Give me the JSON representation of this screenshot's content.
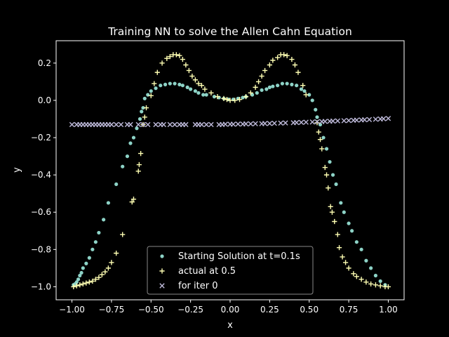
{
  "chart_data": {
    "type": "scatter",
    "title": "Training NN to solve the Allen Cahn Equation",
    "xlabel": "x",
    "ylabel": "y",
    "xlim": [
      -1.1,
      1.1
    ],
    "ylim": [
      -1.07,
      0.32
    ],
    "grid": false,
    "legend_position": "lower-center",
    "x_ticks": [
      -1.0,
      -0.75,
      -0.5,
      -0.25,
      0.0,
      0.25,
      0.5,
      0.75,
      1.0
    ],
    "x_tick_labels": [
      "−1.00",
      "−0.75",
      "−0.50",
      "−0.25",
      "0.00",
      "0.25",
      "0.50",
      "0.75",
      "1.00"
    ],
    "y_ticks": [
      -1.0,
      -0.8,
      -0.6,
      -0.4,
      -0.2,
      0.0,
      0.2
    ],
    "y_tick_labels": [
      "−1.0",
      "−0.8",
      "−0.6",
      "−0.4",
      "−0.2",
      "0.0",
      "0.2"
    ],
    "series": [
      {
        "name": "Starting Solution at t=0.1s",
        "marker": "dot",
        "color": "#8dd3c7",
        "points": [
          [
            -0.99,
            -0.99
          ],
          [
            -0.98,
            -0.985
          ],
          [
            -0.97,
            -0.975
          ],
          [
            -0.96,
            -0.96
          ],
          [
            -0.95,
            -0.94
          ],
          [
            -0.94,
            -0.925
          ],
          [
            -0.93,
            -0.9
          ],
          [
            -0.91,
            -0.875
          ],
          [
            -0.89,
            -0.845
          ],
          [
            -0.87,
            -0.8
          ],
          [
            -0.85,
            -0.76
          ],
          [
            -0.83,
            -0.71
          ],
          [
            -0.8,
            -0.64
          ],
          [
            -0.77,
            -0.55
          ],
          [
            -0.72,
            -0.45
          ],
          [
            -0.68,
            -0.355
          ],
          [
            -0.65,
            -0.3
          ],
          [
            -0.63,
            -0.23
          ],
          [
            -0.61,
            -0.2
          ],
          [
            -0.59,
            -0.15
          ],
          [
            -0.57,
            -0.1
          ],
          [
            -0.56,
            -0.06
          ],
          [
            -0.55,
            -0.04
          ],
          [
            -0.54,
            0.01
          ],
          [
            -0.52,
            0.03
          ],
          [
            -0.5,
            0.05
          ],
          [
            -0.47,
            0.065
          ],
          [
            -0.44,
            0.08
          ],
          [
            -0.41,
            0.085
          ],
          [
            -0.38,
            0.09
          ],
          [
            -0.35,
            0.09
          ],
          [
            -0.32,
            0.085
          ],
          [
            -0.3,
            0.08
          ],
          [
            -0.27,
            0.07
          ],
          [
            -0.25,
            0.06
          ],
          [
            -0.22,
            0.05
          ],
          [
            -0.2,
            0.04
          ],
          [
            -0.17,
            0.03
          ],
          [
            -0.15,
            0.03
          ],
          [
            -0.1,
            0.02
          ],
          [
            -0.07,
            0.015
          ],
          [
            -0.04,
            0.01
          ],
          [
            -0.01,
            0.005
          ],
          [
            0.02,
            0.005
          ],
          [
            0.05,
            0.01
          ],
          [
            0.08,
            0.015
          ],
          [
            0.1,
            0.02
          ],
          [
            0.14,
            0.03
          ],
          [
            0.17,
            0.04
          ],
          [
            0.2,
            0.055
          ],
          [
            0.23,
            0.06
          ],
          [
            0.25,
            0.07
          ],
          [
            0.27,
            0.075
          ],
          [
            0.3,
            0.08
          ],
          [
            0.33,
            0.09
          ],
          [
            0.36,
            0.09
          ],
          [
            0.39,
            0.085
          ],
          [
            0.42,
            0.08
          ],
          [
            0.45,
            0.06
          ],
          [
            0.47,
            0.05
          ],
          [
            0.5,
            0.03
          ],
          [
            0.52,
            0.0
          ],
          [
            0.54,
            -0.05
          ],
          [
            0.55,
            -0.09
          ],
          [
            0.57,
            -0.13
          ],
          [
            0.59,
            -0.2
          ],
          [
            0.61,
            -0.26
          ],
          [
            0.63,
            -0.33
          ],
          [
            0.65,
            -0.4
          ],
          [
            0.67,
            -0.45
          ],
          [
            0.7,
            -0.55
          ],
          [
            0.72,
            -0.6
          ],
          [
            0.75,
            -0.66
          ],
          [
            0.77,
            -0.7
          ],
          [
            0.8,
            -0.76
          ],
          [
            0.83,
            -0.8
          ],
          [
            0.86,
            -0.86
          ],
          [
            0.89,
            -0.9
          ],
          [
            0.92,
            -0.94
          ],
          [
            0.95,
            -0.97
          ],
          [
            0.98,
            -0.99
          ]
        ]
      },
      {
        "name": "actual at 0.5",
        "marker": "plus",
        "color": "#ffffb3",
        "points": [
          [
            -0.99,
            -1.0
          ],
          [
            -0.97,
            -0.995
          ],
          [
            -0.95,
            -0.99
          ],
          [
            -0.93,
            -0.985
          ],
          [
            -0.91,
            -0.98
          ],
          [
            -0.89,
            -0.975
          ],
          [
            -0.87,
            -0.97
          ],
          [
            -0.85,
            -0.96
          ],
          [
            -0.83,
            -0.95
          ],
          [
            -0.81,
            -0.935
          ],
          [
            -0.79,
            -0.92
          ],
          [
            -0.77,
            -0.9
          ],
          [
            -0.75,
            -0.87
          ],
          [
            -0.72,
            -0.82
          ],
          [
            -0.68,
            -0.72
          ],
          [
            -0.62,
            -0.545
          ],
          [
            -0.61,
            -0.53
          ],
          [
            -0.58,
            -0.38
          ],
          [
            -0.575,
            -0.345
          ],
          [
            -0.565,
            -0.285
          ],
          [
            -0.55,
            -0.13
          ],
          [
            -0.54,
            -0.09
          ],
          [
            -0.53,
            -0.04
          ],
          [
            -0.5,
            0.025
          ],
          [
            -0.48,
            0.09
          ],
          [
            -0.46,
            0.15
          ],
          [
            -0.43,
            0.2
          ],
          [
            -0.4,
            0.225
          ],
          [
            -0.38,
            0.235
          ],
          [
            -0.36,
            0.245
          ],
          [
            -0.34,
            0.245
          ],
          [
            -0.32,
            0.24
          ],
          [
            -0.3,
            0.22
          ],
          [
            -0.28,
            0.19
          ],
          [
            -0.26,
            0.16
          ],
          [
            -0.24,
            0.13
          ],
          [
            -0.22,
            0.11
          ],
          [
            -0.2,
            0.09
          ],
          [
            -0.18,
            0.08
          ],
          [
            -0.16,
            0.06
          ],
          [
            -0.12,
            0.04
          ],
          [
            -0.08,
            0.02
          ],
          [
            -0.04,
            0.01
          ],
          [
            -0.02,
            0.005
          ],
          [
            0.0,
            0.0
          ],
          [
            0.03,
            0.0
          ],
          [
            0.06,
            0.005
          ],
          [
            0.1,
            0.02
          ],
          [
            0.13,
            0.04
          ],
          [
            0.16,
            0.07
          ],
          [
            0.18,
            0.1
          ],
          [
            0.2,
            0.13
          ],
          [
            0.22,
            0.16
          ],
          [
            0.25,
            0.19
          ],
          [
            0.27,
            0.215
          ],
          [
            0.3,
            0.23
          ],
          [
            0.32,
            0.245
          ],
          [
            0.34,
            0.245
          ],
          [
            0.36,
            0.24
          ],
          [
            0.39,
            0.22
          ],
          [
            0.41,
            0.19
          ],
          [
            0.43,
            0.15
          ],
          [
            0.46,
            0.08
          ],
          [
            0.48,
            0.03
          ],
          [
            0.55,
            -0.12
          ],
          [
            0.56,
            -0.17
          ],
          [
            0.57,
            -0.21
          ],
          [
            0.58,
            -0.26
          ],
          [
            0.6,
            -0.36
          ],
          [
            0.61,
            -0.4
          ],
          [
            0.62,
            -0.47
          ],
          [
            0.635,
            -0.57
          ],
          [
            0.645,
            -0.6
          ],
          [
            0.66,
            -0.65
          ],
          [
            0.68,
            -0.72
          ],
          [
            0.69,
            -0.79
          ],
          [
            0.71,
            -0.84
          ],
          [
            0.73,
            -0.87
          ],
          [
            0.75,
            -0.9
          ],
          [
            0.78,
            -0.93
          ],
          [
            0.8,
            -0.945
          ],
          [
            0.83,
            -0.96
          ],
          [
            0.86,
            -0.975
          ],
          [
            0.89,
            -0.985
          ],
          [
            0.92,
            -0.99
          ],
          [
            0.95,
            -0.995
          ],
          [
            0.98,
            -1.0
          ],
          [
            1.0,
            -1.0
          ]
        ]
      },
      {
        "name": "for iter 0",
        "marker": "x",
        "color": "#bebada",
        "points": [
          [
            -1.0,
            -0.13
          ],
          [
            -0.97,
            -0.13
          ],
          [
            -0.95,
            -0.13
          ],
          [
            -0.93,
            -0.13
          ],
          [
            -0.91,
            -0.13
          ],
          [
            -0.89,
            -0.13
          ],
          [
            -0.87,
            -0.13
          ],
          [
            -0.85,
            -0.13
          ],
          [
            -0.83,
            -0.13
          ],
          [
            -0.81,
            -0.13
          ],
          [
            -0.79,
            -0.13
          ],
          [
            -0.77,
            -0.13
          ],
          [
            -0.75,
            -0.13
          ],
          [
            -0.72,
            -0.13
          ],
          [
            -0.69,
            -0.13
          ],
          [
            -0.65,
            -0.13
          ],
          [
            -0.63,
            -0.13
          ],
          [
            -0.58,
            -0.13
          ],
          [
            -0.55,
            -0.13
          ],
          [
            -0.52,
            -0.13
          ],
          [
            -0.47,
            -0.13
          ],
          [
            -0.44,
            -0.13
          ],
          [
            -0.42,
            -0.13
          ],
          [
            -0.38,
            -0.13
          ],
          [
            -0.35,
            -0.13
          ],
          [
            -0.32,
            -0.13
          ],
          [
            -0.3,
            -0.13
          ],
          [
            -0.28,
            -0.13
          ],
          [
            -0.22,
            -0.13
          ],
          [
            -0.2,
            -0.13
          ],
          [
            -0.18,
            -0.13
          ],
          [
            -0.15,
            -0.13
          ],
          [
            -0.12,
            -0.13
          ],
          [
            -0.07,
            -0.13
          ],
          [
            -0.05,
            -0.13
          ],
          [
            -0.03,
            -0.128
          ],
          [
            0.0,
            -0.128
          ],
          [
            0.02,
            -0.128
          ],
          [
            0.05,
            -0.127
          ],
          [
            0.08,
            -0.127
          ],
          [
            0.1,
            -0.126
          ],
          [
            0.13,
            -0.126
          ],
          [
            0.16,
            -0.125
          ],
          [
            0.2,
            -0.125
          ],
          [
            0.22,
            -0.124
          ],
          [
            0.25,
            -0.124
          ],
          [
            0.28,
            -0.123
          ],
          [
            0.32,
            -0.122
          ],
          [
            0.35,
            -0.121
          ],
          [
            0.4,
            -0.12
          ],
          [
            0.42,
            -0.119
          ],
          [
            0.45,
            -0.118
          ],
          [
            0.48,
            -0.117
          ],
          [
            0.52,
            -0.116
          ],
          [
            0.55,
            -0.115
          ],
          [
            0.58,
            -0.114
          ],
          [
            0.6,
            -0.113
          ],
          [
            0.63,
            -0.112
          ],
          [
            0.65,
            -0.111
          ],
          [
            0.68,
            -0.11
          ],
          [
            0.72,
            -0.109
          ],
          [
            0.75,
            -0.108
          ],
          [
            0.78,
            -0.107
          ],
          [
            0.8,
            -0.106
          ],
          [
            0.83,
            -0.105
          ],
          [
            0.85,
            -0.104
          ],
          [
            0.88,
            -0.103
          ],
          [
            0.92,
            -0.101
          ],
          [
            0.95,
            -0.1
          ],
          [
            0.97,
            -0.099
          ],
          [
            1.0,
            -0.097
          ]
        ]
      }
    ]
  }
}
